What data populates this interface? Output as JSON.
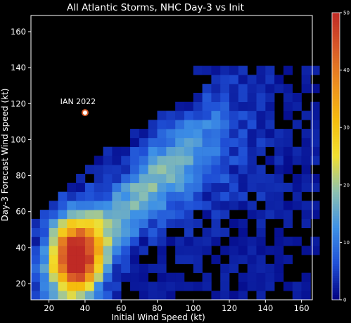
{
  "chart_data": {
    "type": "heatmap",
    "title": "All Atlantic Storms, NHC Day-3 vs Init",
    "xlabel": "Initial Wind Speed (kt)",
    "ylabel": "Day-3 Forecast Wind speed (kt)",
    "xlim": [
      10,
      166
    ],
    "ylim": [
      11,
      169
    ],
    "xticks": [
      "20",
      "40",
      "60",
      "80",
      "100",
      "120",
      "140",
      "160"
    ],
    "yticks": [
      "20",
      "40",
      "60",
      "80",
      "100",
      "120",
      "140",
      "160"
    ],
    "bin_width": 5,
    "colorbar": {
      "min": 0,
      "max": 50,
      "ticks": [
        "0",
        "10",
        "20",
        "30",
        "40",
        "50"
      ],
      "colormap": [
        "#000080",
        "#1f4fd6",
        "#3d90e6",
        "#8cc0b0",
        "#f2e030",
        "#f5bc0d",
        "#ec8e1e",
        "#d85a28",
        "#bf2a25"
      ]
    },
    "grid": false,
    "legend": "none",
    "density_model": {
      "x_range": [
        10,
        166
      ],
      "y_range": [
        11,
        141
      ],
      "x_peak": 35,
      "y_peak": 35,
      "peak_count": 50,
      "note": "2D histogram of counts; dense at weak storms, sparse high-intensity tail"
    },
    "annotation": {
      "label": "IAN 2022",
      "x": 40,
      "y": 115
    }
  }
}
